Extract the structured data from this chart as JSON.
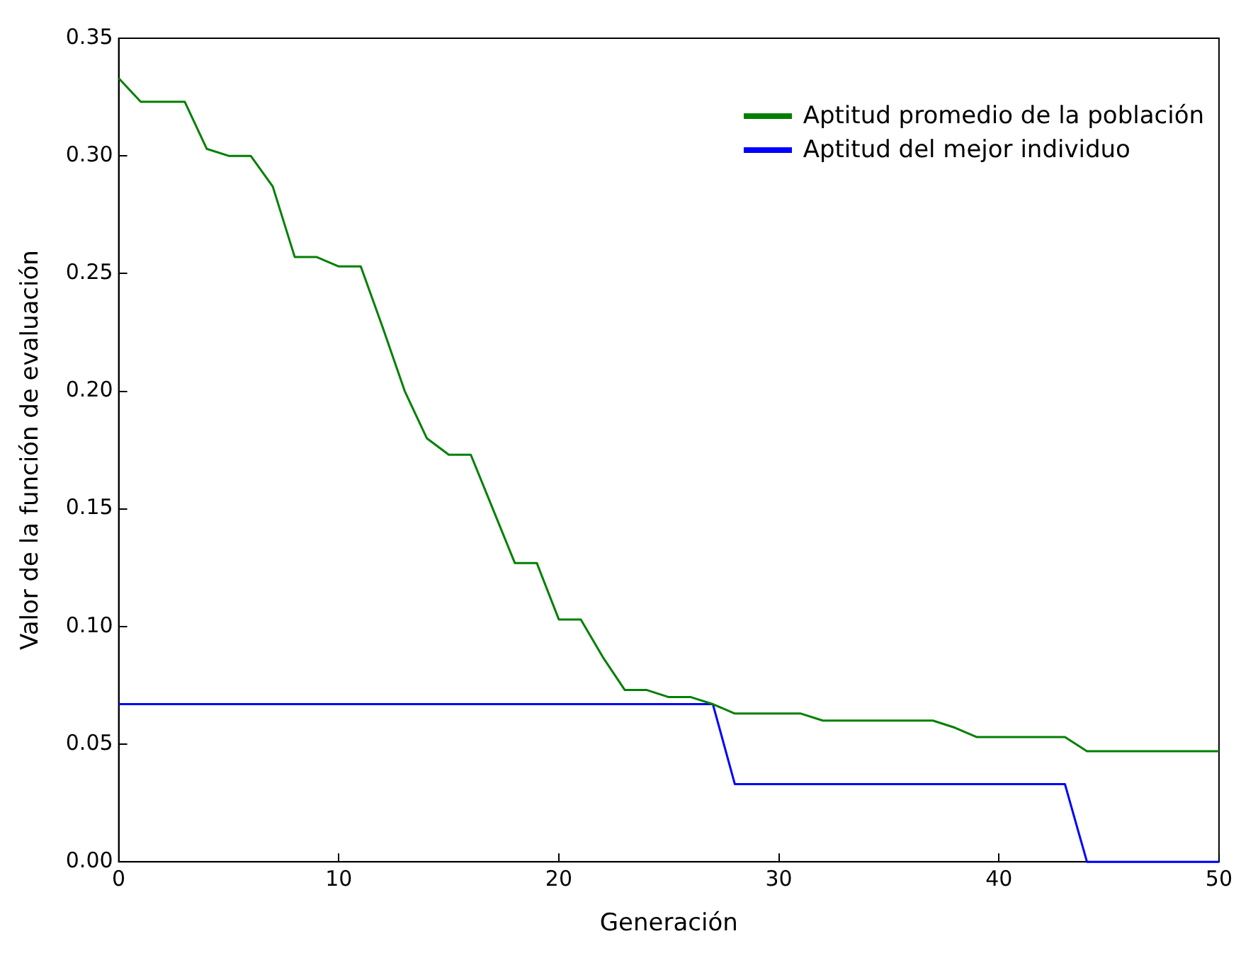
{
  "chart_data": {
    "type": "line",
    "xlabel": "Generación",
    "ylabel": "Valor de la función de evaluación",
    "x": [
      0,
      1,
      2,
      3,
      4,
      5,
      6,
      7,
      8,
      9,
      10,
      11,
      12,
      13,
      14,
      15,
      16,
      17,
      18,
      19,
      20,
      21,
      22,
      23,
      24,
      25,
      26,
      27,
      28,
      29,
      30,
      31,
      32,
      33,
      34,
      35,
      36,
      37,
      38,
      39,
      40,
      41,
      42,
      43,
      44,
      45,
      46,
      47,
      48,
      49,
      50
    ],
    "series": [
      {
        "name": "Aptitud promedio de la población",
        "color": "#008000",
        "values": [
          0.333,
          0.323,
          0.323,
          0.323,
          0.303,
          0.3,
          0.3,
          0.287,
          0.257,
          0.257,
          0.253,
          0.253,
          0.227,
          0.2,
          0.18,
          0.173,
          0.173,
          0.15,
          0.127,
          0.127,
          0.103,
          0.103,
          0.087,
          0.073,
          0.073,
          0.07,
          0.07,
          0.067,
          0.063,
          0.063,
          0.063,
          0.063,
          0.06,
          0.06,
          0.06,
          0.06,
          0.06,
          0.06,
          0.057,
          0.053,
          0.053,
          0.053,
          0.053,
          0.053,
          0.047,
          0.047,
          0.047,
          0.047,
          0.047,
          0.047,
          0.047
        ]
      },
      {
        "name": "Aptitud del mejor individuo",
        "color": "#0000ff",
        "values": [
          0.067,
          0.067,
          0.067,
          0.067,
          0.067,
          0.067,
          0.067,
          0.067,
          0.067,
          0.067,
          0.067,
          0.067,
          0.067,
          0.067,
          0.067,
          0.067,
          0.067,
          0.067,
          0.067,
          0.067,
          0.067,
          0.067,
          0.067,
          0.067,
          0.067,
          0.067,
          0.067,
          0.067,
          0.033,
          0.033,
          0.033,
          0.033,
          0.033,
          0.033,
          0.033,
          0.033,
          0.033,
          0.033,
          0.033,
          0.033,
          0.033,
          0.033,
          0.033,
          0.033,
          0,
          0,
          0,
          0,
          0,
          0,
          0
        ]
      }
    ],
    "xlim": [
      0,
      50
    ],
    "xticks": [
      0,
      10,
      20,
      30,
      40,
      50
    ],
    "ylim": [
      0,
      0.35
    ],
    "yticks": [
      {
        "value": 0,
        "label": "0.00"
      },
      {
        "value": 0.05,
        "label": "0.05"
      },
      {
        "value": 0.1,
        "label": "0.10"
      },
      {
        "value": 0.15,
        "label": "0.15"
      },
      {
        "value": 0.2,
        "label": "0.20"
      },
      {
        "value": 0.25,
        "label": "0.25"
      },
      {
        "value": 0.3,
        "label": "0.30"
      },
      {
        "value": 0.35,
        "label": "0.35"
      }
    ],
    "legend": "top right",
    "grid": false,
    "marker": "none",
    "line_style": "solid"
  }
}
